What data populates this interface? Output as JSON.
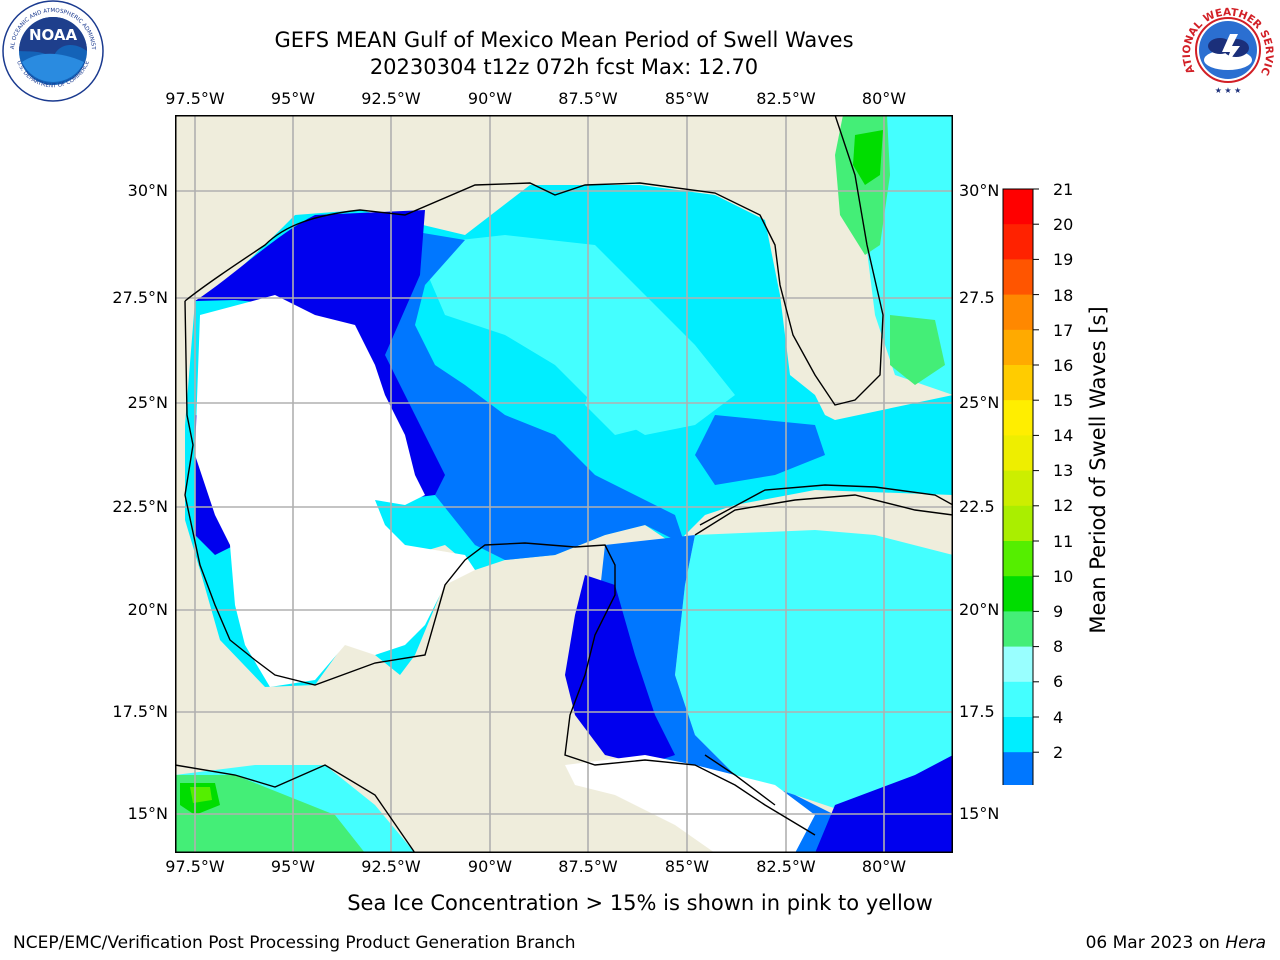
{
  "header": {
    "title_line1": "GEFS MEAN Gulf of Mexico Mean Period of Swell Waves",
    "title_line2": "20230304 t12z 072h fcst   Max: 12.70"
  },
  "logos": {
    "noaa_text": "NOAA",
    "noaa_ring_text": "NATIONAL OCEANIC AND ATMOSPHERIC ADMINISTRATION",
    "noaa_ring_text_bottom": "U.S. DEPARTMENT OF COMMERCE",
    "nws_ring_text": "NATIONAL WEATHER SERVICE"
  },
  "map": {
    "lon_ticks": [
      "97.5°W",
      "95°W",
      "92.5°W",
      "90°W",
      "87.5°W",
      "85°W",
      "82.5°W",
      "80°W"
    ],
    "lat_ticks_left": [
      "30°N",
      "27.5°N",
      "25°N",
      "22.5°N",
      "20°N",
      "17.5°N",
      "15°N"
    ],
    "lat_ticks_right": [
      "30°N",
      "27.5",
      "25°N",
      "22.5",
      "20°N",
      "17.5",
      "15°N"
    ],
    "colors": {
      "land": "#efeddc",
      "grid": "#b0b0b0",
      "coast": "#000000",
      "no_data": "#ffffff"
    }
  },
  "colorbar": {
    "title": "Mean Period of Swell Waves [s]",
    "levels": [
      "2",
      "4",
      "6",
      "8",
      "9",
      "10",
      "11",
      "12",
      "13",
      "14",
      "15",
      "16",
      "17",
      "18",
      "19",
      "20",
      "21"
    ],
    "colors": [
      "#0000ee",
      "#0077ff",
      "#00eeff",
      "#44ffff",
      "#99ffff",
      "#44ee77",
      "#00dd00",
      "#55ee00",
      "#aaee00",
      "#ccee00",
      "#eeee00",
      "#ffee00",
      "#ffcc00",
      "#ffaa00",
      "#ff8800",
      "#ff5500",
      "#ff2200",
      "#ff0000"
    ]
  },
  "footer": {
    "sea_ice_note": "Sea Ice Concentration > 15% is shown in pink to yellow",
    "left": "NCEP/EMC/Verification Post Processing Product Generation Branch",
    "right_prefix": "06 Mar 2023 on ",
    "right_host": "Hera"
  }
}
